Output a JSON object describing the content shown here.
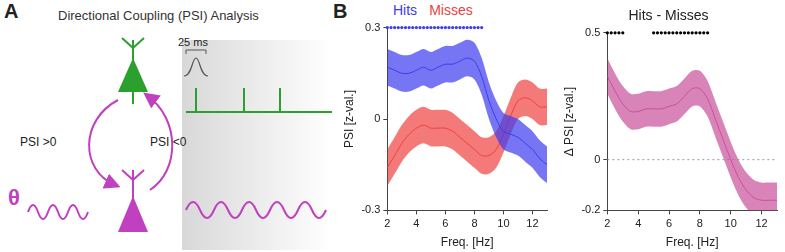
{
  "panel_labels": [
    "A",
    "B"
  ],
  "diagram": {
    "title": "Directional Coupling (PSI) Analysis",
    "left_arrow_label": "PSI >0",
    "right_arrow_label": "PSI <0",
    "rhythm_label": "θ",
    "scale_label": "25 ms"
  },
  "chart_data": [
    {
      "type": "line",
      "legend": "top",
      "xlabel": "Freq. [Hz]",
      "ylabel": "PSI [z-val.]",
      "xlim": [
        2,
        13
      ],
      "xticks": [
        2,
        4,
        6,
        8,
        10,
        12
      ],
      "ylim": [
        -0.3,
        0.3
      ],
      "yticks": [
        -0.3,
        0,
        0.3
      ],
      "grid": false,
      "x": [
        2,
        2.5,
        3,
        3.5,
        4,
        4.5,
        5,
        5.5,
        6,
        6.5,
        7,
        7.5,
        8,
        8.5,
        9,
        9.5,
        10,
        10.5,
        11,
        11.5,
        12,
        12.5,
        13
      ],
      "series": [
        {
          "name": "Hits",
          "color": "#3c3cf0",
          "values": [
            0.17,
            0.16,
            0.15,
            0.15,
            0.16,
            0.17,
            0.16,
            0.17,
            0.18,
            0.18,
            0.19,
            0.2,
            0.19,
            0.14,
            0.06,
            0.0,
            -0.04,
            -0.05,
            -0.06,
            -0.08,
            -0.1,
            -0.13,
            -0.15
          ],
          "error": [
            0.06,
            0.06,
            0.06,
            0.06,
            0.06,
            0.06,
            0.06,
            0.06,
            0.06,
            0.06,
            0.06,
            0.06,
            0.06,
            0.06,
            0.06,
            0.06,
            0.06,
            0.06,
            0.06,
            0.06,
            0.06,
            0.06,
            0.06
          ]
        },
        {
          "name": "Misses",
          "color": "#f04040",
          "values": [
            -0.16,
            -0.12,
            -0.08,
            -0.05,
            -0.03,
            -0.02,
            -0.03,
            -0.03,
            -0.03,
            -0.04,
            -0.06,
            -0.08,
            -0.1,
            -0.12,
            -0.12,
            -0.1,
            -0.05,
            0.01,
            0.06,
            0.07,
            0.06,
            0.04,
            0.04
          ],
          "error": [
            0.06,
            0.06,
            0.06,
            0.06,
            0.06,
            0.06,
            0.06,
            0.06,
            0.06,
            0.06,
            0.06,
            0.06,
            0.06,
            0.06,
            0.06,
            0.06,
            0.06,
            0.06,
            0.06,
            0.06,
            0.06,
            0.06,
            0.06
          ]
        }
      ],
      "significance": {
        "color": "#3c3cf0",
        "marker": "dot",
        "y": 0.3,
        "x": [
          2,
          2.25,
          2.5,
          2.75,
          3,
          3.25,
          3.5,
          3.75,
          4,
          4.25,
          4.5,
          4.75,
          5,
          5.25,
          5.5,
          5.75,
          6,
          6.25,
          6.5,
          6.75,
          7,
          7.25,
          7.5,
          7.75,
          8,
          8.25,
          8.5
        ]
      }
    },
    {
      "type": "line",
      "title": "Hits - Misses",
      "xlabel": "Freq. [Hz]",
      "ylabel": "Δ PSI [z-val.]",
      "xlim": [
        2,
        13
      ],
      "xticks": [
        2,
        4,
        6,
        8,
        10,
        12
      ],
      "ylim": [
        -0.2,
        0.5
      ],
      "yticks": [
        -0.2,
        0,
        0.5
      ],
      "grid": false,
      "hline": 0,
      "x": [
        2,
        2.5,
        3,
        3.5,
        4,
        4.5,
        5,
        5.5,
        6,
        6.5,
        7,
        7.5,
        8,
        8.5,
        9,
        9.5,
        10,
        10.5,
        11,
        11.5,
        12,
        12.5,
        13
      ],
      "series": [
        {
          "color": "#c8509a",
          "values": [
            0.33,
            0.27,
            0.22,
            0.19,
            0.19,
            0.2,
            0.2,
            0.2,
            0.21,
            0.22,
            0.25,
            0.28,
            0.28,
            0.24,
            0.16,
            0.08,
            0.0,
            -0.07,
            -0.12,
            -0.15,
            -0.16,
            -0.16,
            -0.16
          ],
          "error": [
            0.07,
            0.07,
            0.07,
            0.07,
            0.07,
            0.07,
            0.07,
            0.07,
            0.07,
            0.07,
            0.07,
            0.07,
            0.07,
            0.07,
            0.07,
            0.07,
            0.07,
            0.07,
            0.07,
            0.07,
            0.07,
            0.07,
            0.07
          ]
        }
      ],
      "significance": {
        "color": "#000000",
        "marker": "dot",
        "y": 0.5,
        "x": [
          2,
          2.25,
          2.5,
          2.75,
          3,
          5,
          5.25,
          5.5,
          5.75,
          6,
          6.25,
          6.5,
          6.75,
          7,
          7.25,
          7.5,
          7.75,
          8,
          8.25,
          8.5
        ]
      }
    }
  ]
}
